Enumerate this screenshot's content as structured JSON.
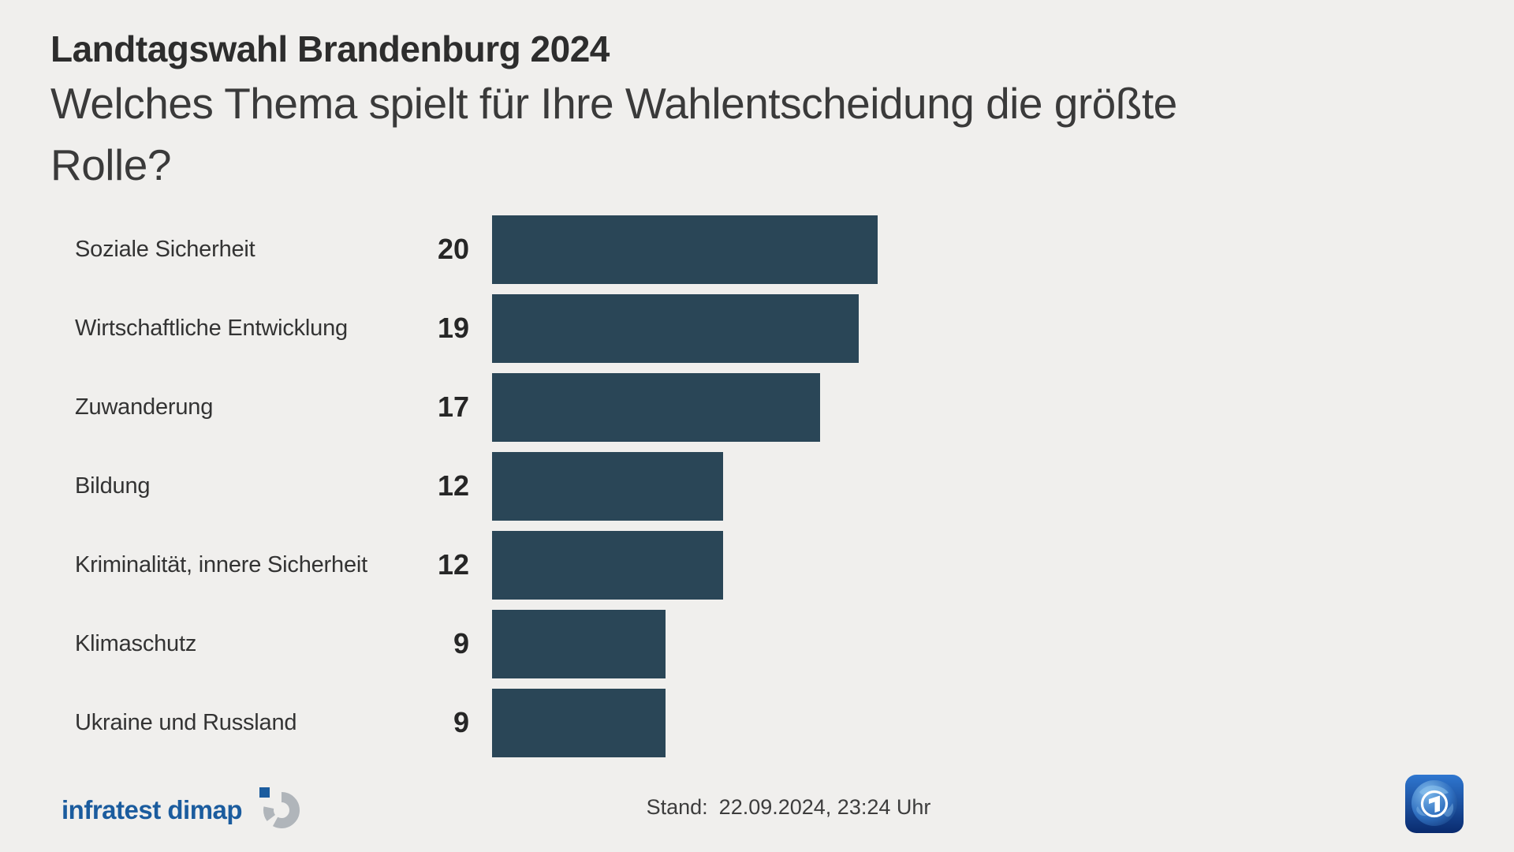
{
  "header": {
    "title": "Landtagswahl Brandenburg 2024",
    "question_lines": [
      "Welches Thema spielt für Ihre Wahlentscheidung die größte",
      "Rolle?"
    ]
  },
  "chart_data": {
    "type": "bar",
    "orientation": "horizontal",
    "title": "Landtagswahl Brandenburg 2024",
    "subtitle": "Welches Thema spielt für Ihre Wahlentscheidung die größte Rolle?",
    "categories": [
      "Soziale Sicherheit",
      "Wirtschaftliche Entwicklung",
      "Zuwanderung",
      "Bildung",
      "Kriminalität, innere Sicherheit",
      "Klimaschutz",
      "Ukraine und Russland"
    ],
    "values": [
      20,
      19,
      17,
      12,
      12,
      9,
      9
    ],
    "value_labels_shown": true,
    "axis_shown": false,
    "grid": false,
    "legend": false,
    "bar_color": "#2a4657"
  },
  "footer": {
    "source_logo_text": "infratest dimap",
    "stand_label": "Stand:",
    "stand_value": "22.09.2024, 23:24 Uhr",
    "broadcaster_logo": "ard-tagesschau-globe"
  },
  "colors": {
    "background": "#f0efed",
    "bar": "#2a4657",
    "title_text": "#2d2d2d",
    "question_text": "#3a3a3a",
    "label_text": "#333333",
    "value_text": "#262626",
    "stand_text": "#3d3d3d",
    "infratest_blue": "#1b5c9e",
    "infratest_gray": "#b0b5ba",
    "ard_blue_light": "#2f77d0",
    "ard_blue_dark": "#092a6e"
  }
}
